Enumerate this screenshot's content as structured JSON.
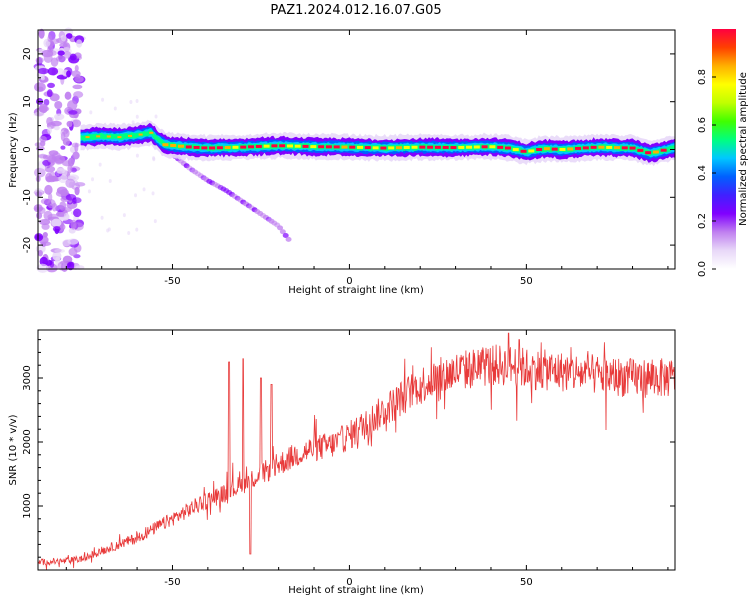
{
  "title": "PAZ1.2024.012.16.07.G05",
  "chart_data": [
    {
      "type": "heatmap",
      "xlabel": "Height of straight line (km)",
      "ylabel": "Frequency (Hz)",
      "xlim": [
        -88,
        92
      ],
      "ylim": [
        -25,
        25
      ],
      "xticks": [
        -50,
        0,
        50
      ],
      "yticks": [
        -20,
        -10,
        0,
        10,
        20
      ],
      "colorbar": {
        "label": "Normalized spectral amplitude",
        "range": [
          0,
          1
        ],
        "ticks": [
          "0.0",
          "0.2",
          "0.4",
          "0.6",
          "0.8"
        ],
        "colors": [
          "#ffffff",
          "#e8d8f8",
          "#c080f0",
          "#8000ff",
          "#4020ff",
          "#0060ff",
          "#00c8ff",
          "#00ff80",
          "#40ff00",
          "#c0ff00",
          "#ffff00",
          "#ffb000",
          "#ff4000",
          "#ff0040"
        ]
      },
      "ridge_main": {
        "x": [
          -76,
          -70,
          -65,
          -60,
          -56,
          -54,
          -52,
          -45,
          -40,
          -30,
          -20,
          -10,
          0,
          10,
          20,
          30,
          40,
          45,
          50,
          55,
          60,
          70,
          80,
          85,
          92
        ],
        "y": [
          2.5,
          2.8,
          2.6,
          3.0,
          3.5,
          2.0,
          1.0,
          0.5,
          0.3,
          0.5,
          0.8,
          0.6,
          0.5,
          0.3,
          0.5,
          0.4,
          0.6,
          0.3,
          -0.5,
          0.2,
          0.0,
          0.5,
          0.3,
          -0.8,
          0.4
        ]
      },
      "ridge_secondary": {
        "x": [
          -50,
          -45,
          -40,
          -35,
          -30,
          -25,
          -20,
          -17
        ],
        "y": [
          -1,
          -4,
          -6.5,
          -8.5,
          -11,
          -13.5,
          -16,
          -19
        ]
      },
      "noise_region": {
        "x_range": [
          -88,
          -76
        ],
        "y_range": [
          -25,
          25
        ]
      }
    },
    {
      "type": "line",
      "xlabel": "Height of straight line (km)",
      "ylabel": "SNR (10 * v/v)",
      "xlim": [
        -88,
        92
      ],
      "ylim": [
        0,
        3750
      ],
      "xticks": [
        -50,
        0,
        50
      ],
      "yticks": [
        1000,
        2000,
        3000
      ],
      "color": "#e83a3a",
      "trend": {
        "x": [
          -88,
          -80,
          -75,
          -70,
          -60,
          -50,
          -45,
          -40,
          -35,
          -30,
          -25,
          -20,
          -15,
          -10,
          -5,
          0,
          5,
          10,
          15,
          20,
          25,
          30,
          35,
          40,
          45,
          50,
          60,
          70,
          80,
          85,
          92
        ],
        "y": [
          120,
          140,
          180,
          300,
          500,
          800,
          950,
          1100,
          1200,
          1350,
          1500,
          1650,
          1800,
          1900,
          1950,
          2100,
          2300,
          2500,
          2700,
          2900,
          3000,
          3100,
          3150,
          3200,
          3200,
          3150,
          3100,
          3050,
          3000,
          3000,
          3000
        ]
      },
      "spikes": [
        {
          "x": -34,
          "y": 3250
        },
        {
          "x": -30,
          "y": 3300
        },
        {
          "x": -28,
          "y": 250
        },
        {
          "x": -25,
          "y": 3000
        },
        {
          "x": -22,
          "y": 2900
        },
        {
          "x": 45,
          "y": 3700
        },
        {
          "x": 48,
          "y": 3600
        }
      ]
    }
  ]
}
